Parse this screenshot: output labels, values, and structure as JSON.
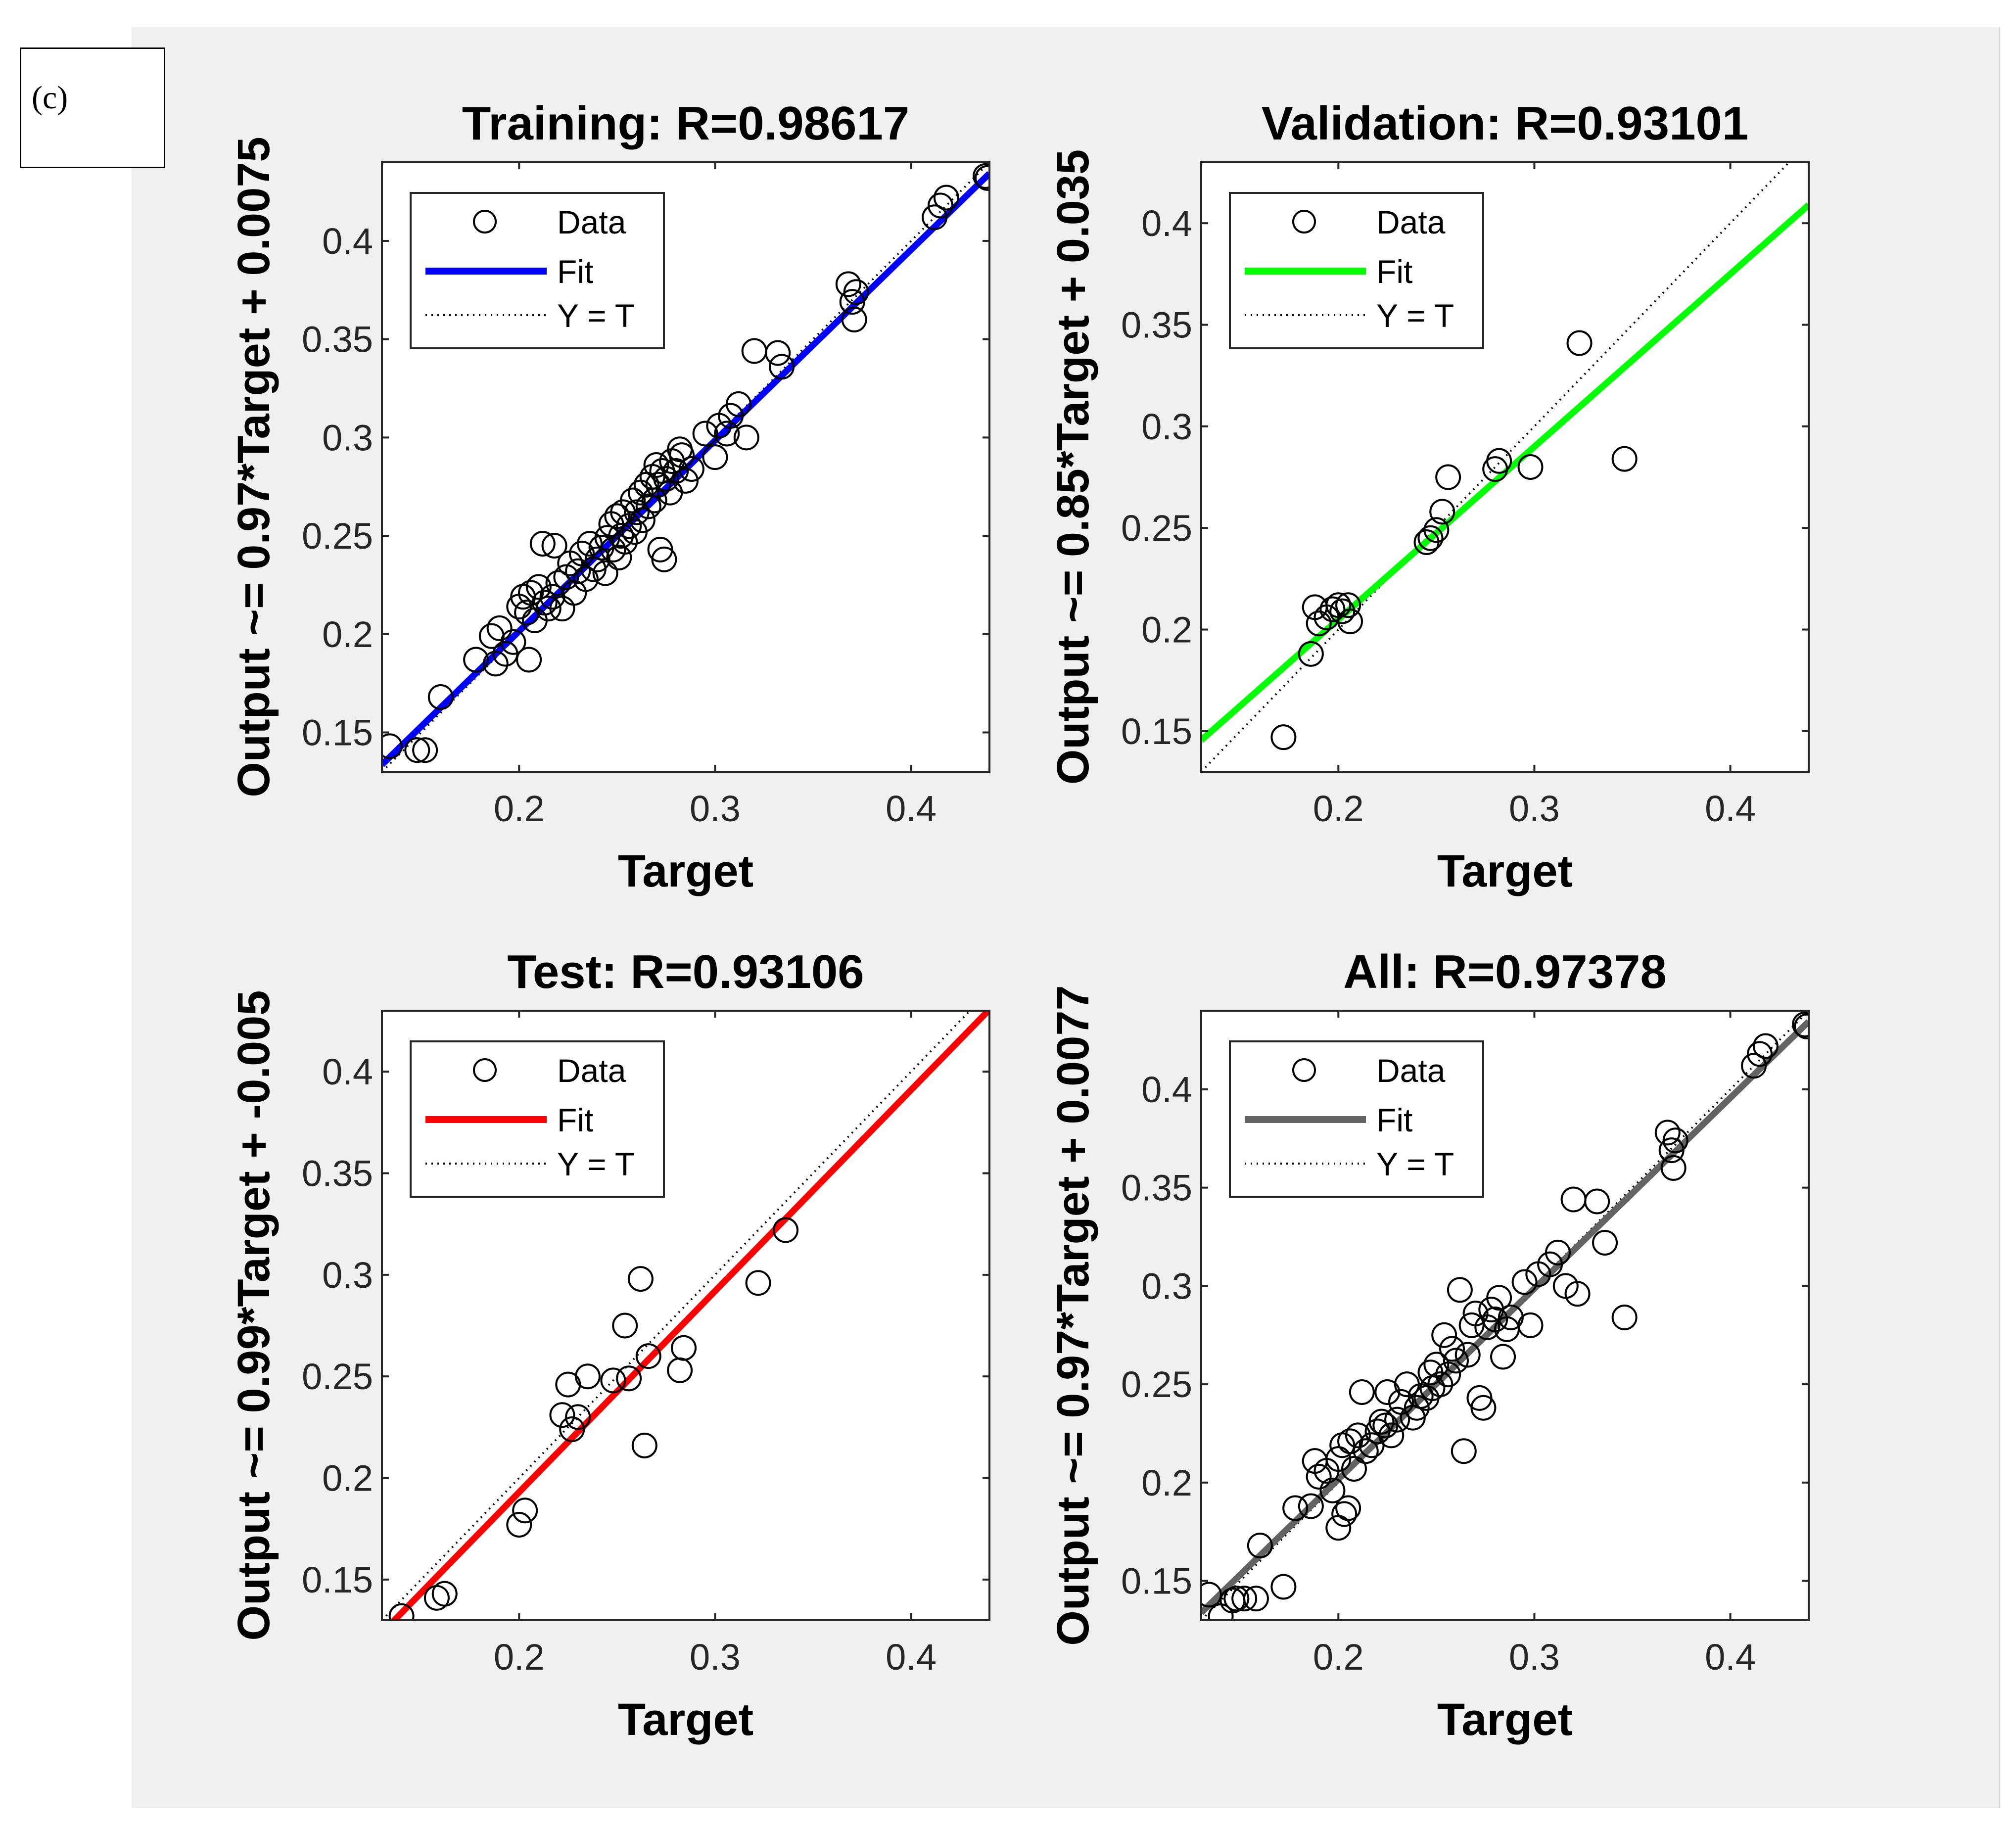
{
  "panel_label": "(c)",
  "colors": {
    "training": "#0000ff",
    "validation": "#00ff00",
    "test": "#ff0000",
    "all": "#636363"
  },
  "chart_data": [
    {
      "type": "scatter",
      "title": "Training: R=0.98617",
      "xlabel": "Target",
      "ylabel": "Output ~= 0.97*Target + 0.0075",
      "xlim": [
        0.13,
        0.44
      ],
      "ylim": [
        0.13,
        0.44
      ],
      "xticks": [
        0.2,
        0.3,
        0.4
      ],
      "yticks": [
        0.15,
        0.2,
        0.25,
        0.3,
        0.35,
        0.4
      ],
      "fit": {
        "slope": 0.97,
        "intercept": 0.0075
      },
      "fit_color": "#0000ff",
      "legend": [
        "Data",
        "Fit",
        "Y = T"
      ],
      "points": [
        [
          0.134,
          0.143
        ],
        [
          0.148,
          0.141
        ],
        [
          0.152,
          0.141
        ],
        [
          0.16,
          0.168
        ],
        [
          0.178,
          0.187
        ],
        [
          0.186,
          0.199
        ],
        [
          0.188,
          0.185
        ],
        [
          0.19,
          0.203
        ],
        [
          0.193,
          0.19
        ],
        [
          0.197,
          0.196
        ],
        [
          0.2,
          0.214
        ],
        [
          0.202,
          0.219
        ],
        [
          0.204,
          0.211
        ],
        [
          0.205,
          0.187
        ],
        [
          0.206,
          0.221
        ],
        [
          0.208,
          0.207
        ],
        [
          0.21,
          0.224
        ],
        [
          0.212,
          0.246
        ],
        [
          0.213,
          0.216
        ],
        [
          0.215,
          0.213
        ],
        [
          0.217,
          0.219
        ],
        [
          0.218,
          0.245
        ],
        [
          0.22,
          0.226
        ],
        [
          0.222,
          0.213
        ],
        [
          0.224,
          0.229
        ],
        [
          0.226,
          0.236
        ],
        [
          0.228,
          0.221
        ],
        [
          0.23,
          0.232
        ],
        [
          0.232,
          0.241
        ],
        [
          0.234,
          0.228
        ],
        [
          0.236,
          0.246
        ],
        [
          0.238,
          0.233
        ],
        [
          0.24,
          0.238
        ],
        [
          0.242,
          0.244
        ],
        [
          0.244,
          0.231
        ],
        [
          0.245,
          0.249
        ],
        [
          0.247,
          0.256
        ],
        [
          0.248,
          0.243
        ],
        [
          0.25,
          0.26
        ],
        [
          0.251,
          0.239
        ],
        [
          0.252,
          0.25
        ],
        [
          0.253,
          0.262
        ],
        [
          0.254,
          0.247
        ],
        [
          0.256,
          0.255
        ],
        [
          0.258,
          0.268
        ],
        [
          0.259,
          0.252
        ],
        [
          0.26,
          0.262
        ],
        [
          0.262,
          0.272
        ],
        [
          0.263,
          0.258
        ],
        [
          0.265,
          0.276
        ],
        [
          0.266,
          0.265
        ],
        [
          0.268,
          0.28
        ],
        [
          0.269,
          0.268
        ],
        [
          0.27,
          0.286
        ],
        [
          0.271,
          0.276
        ],
        [
          0.272,
          0.243
        ],
        [
          0.273,
          0.283
        ],
        [
          0.274,
          0.238
        ],
        [
          0.275,
          0.279
        ],
        [
          0.277,
          0.272
        ],
        [
          0.278,
          0.288
        ],
        [
          0.28,
          0.283
        ],
        [
          0.282,
          0.294
        ],
        [
          0.283,
          0.291
        ],
        [
          0.285,
          0.278
        ],
        [
          0.288,
          0.284
        ],
        [
          0.295,
          0.302
        ],
        [
          0.3,
          0.29
        ],
        [
          0.302,
          0.306
        ],
        [
          0.306,
          0.302
        ],
        [
          0.308,
          0.311
        ],
        [
          0.312,
          0.317
        ],
        [
          0.316,
          0.3
        ],
        [
          0.32,
          0.344
        ],
        [
          0.332,
          0.343
        ],
        [
          0.334,
          0.336
        ],
        [
          0.368,
          0.378
        ],
        [
          0.37,
          0.369
        ],
        [
          0.371,
          0.36
        ],
        [
          0.372,
          0.374
        ],
        [
          0.412,
          0.412
        ],
        [
          0.415,
          0.418
        ],
        [
          0.418,
          0.422
        ],
        [
          0.438,
          0.433
        ],
        [
          0.439,
          0.432
        ]
      ]
    },
    {
      "type": "scatter",
      "title": "Validation: R=0.93101",
      "xlabel": "Target",
      "ylabel": "Output ~= 0.85*Target + 0.035",
      "xlim": [
        0.13,
        0.44
      ],
      "ylim": [
        0.13,
        0.43
      ],
      "xticks": [
        0.2,
        0.3,
        0.4
      ],
      "yticks": [
        0.15,
        0.2,
        0.25,
        0.3,
        0.35,
        0.4
      ],
      "fit": {
        "slope": 0.85,
        "intercept": 0.035
      },
      "fit_color": "#00ff00",
      "legend": [
        "Data",
        "Fit",
        "Y = T"
      ],
      "points": [
        [
          0.172,
          0.147
        ],
        [
          0.186,
          0.188
        ],
        [
          0.188,
          0.211
        ],
        [
          0.19,
          0.203
        ],
        [
          0.194,
          0.206
        ],
        [
          0.197,
          0.21
        ],
        [
          0.2,
          0.212
        ],
        [
          0.202,
          0.209
        ],
        [
          0.205,
          0.212
        ],
        [
          0.206,
          0.204
        ],
        [
          0.245,
          0.243
        ],
        [
          0.247,
          0.245
        ],
        [
          0.25,
          0.249
        ],
        [
          0.253,
          0.258
        ],
        [
          0.256,
          0.275
        ],
        [
          0.28,
          0.279
        ],
        [
          0.282,
          0.283
        ],
        [
          0.298,
          0.28
        ],
        [
          0.323,
          0.341
        ],
        [
          0.346,
          0.284
        ]
      ]
    },
    {
      "type": "scatter",
      "title": "Test: R=0.93106",
      "xlabel": "Target",
      "ylabel": "Output ~= 0.99*Target + -0.005",
      "xlim": [
        0.13,
        0.44
      ],
      "ylim": [
        0.13,
        0.43
      ],
      "xticks": [
        0.2,
        0.3,
        0.4
      ],
      "yticks": [
        0.15,
        0.2,
        0.25,
        0.3,
        0.35,
        0.4
      ],
      "fit": {
        "slope": 0.99,
        "intercept": -0.005
      },
      "fit_color": "#ff0000",
      "legend": [
        "Data",
        "Fit",
        "Y = T"
      ],
      "points": [
        [
          0.14,
          0.132
        ],
        [
          0.158,
          0.141
        ],
        [
          0.162,
          0.143
        ],
        [
          0.2,
          0.177
        ],
        [
          0.203,
          0.184
        ],
        [
          0.222,
          0.231
        ],
        [
          0.225,
          0.246
        ],
        [
          0.227,
          0.224
        ],
        [
          0.23,
          0.23
        ],
        [
          0.235,
          0.25
        ],
        [
          0.248,
          0.248
        ],
        [
          0.254,
          0.275
        ],
        [
          0.256,
          0.249
        ],
        [
          0.262,
          0.298
        ],
        [
          0.264,
          0.216
        ],
        [
          0.266,
          0.26
        ],
        [
          0.282,
          0.253
        ],
        [
          0.284,
          0.264
        ],
        [
          0.322,
          0.296
        ],
        [
          0.336,
          0.322
        ]
      ]
    },
    {
      "type": "scatter",
      "title": "All: R=0.97378",
      "xlabel": "Target",
      "ylabel": "Output ~= 0.97*Target + 0.0077",
      "xlim": [
        0.13,
        0.44
      ],
      "ylim": [
        0.13,
        0.44
      ],
      "xticks": [
        0.2,
        0.3,
        0.4
      ],
      "yticks": [
        0.15,
        0.2,
        0.25,
        0.3,
        0.35,
        0.4
      ],
      "fit": {
        "slope": 0.97,
        "intercept": 0.0077
      },
      "fit_color": "#636363",
      "legend": [
        "Data",
        "Fit",
        "Y = T"
      ],
      "points": [
        [
          0.134,
          0.143
        ],
        [
          0.14,
          0.132
        ],
        [
          0.146,
          0.14
        ],
        [
          0.148,
          0.141
        ],
        [
          0.152,
          0.141
        ],
        [
          0.158,
          0.141
        ],
        [
          0.16,
          0.168
        ],
        [
          0.172,
          0.147
        ],
        [
          0.178,
          0.187
        ],
        [
          0.186,
          0.188
        ],
        [
          0.188,
          0.211
        ],
        [
          0.19,
          0.203
        ],
        [
          0.194,
          0.206
        ],
        [
          0.197,
          0.196
        ],
        [
          0.2,
          0.177
        ],
        [
          0.2,
          0.212
        ],
        [
          0.202,
          0.219
        ],
        [
          0.203,
          0.184
        ],
        [
          0.205,
          0.187
        ],
        [
          0.206,
          0.221
        ],
        [
          0.208,
          0.207
        ],
        [
          0.21,
          0.224
        ],
        [
          0.212,
          0.246
        ],
        [
          0.214,
          0.216
        ],
        [
          0.217,
          0.219
        ],
        [
          0.22,
          0.226
        ],
        [
          0.222,
          0.231
        ],
        [
          0.224,
          0.229
        ],
        [
          0.225,
          0.246
        ],
        [
          0.227,
          0.224
        ],
        [
          0.23,
          0.232
        ],
        [
          0.232,
          0.241
        ],
        [
          0.235,
          0.25
        ],
        [
          0.238,
          0.233
        ],
        [
          0.24,
          0.238
        ],
        [
          0.242,
          0.244
        ],
        [
          0.245,
          0.243
        ],
        [
          0.247,
          0.256
        ],
        [
          0.248,
          0.248
        ],
        [
          0.25,
          0.26
        ],
        [
          0.252,
          0.25
        ],
        [
          0.254,
          0.275
        ],
        [
          0.256,
          0.255
        ],
        [
          0.258,
          0.268
        ],
        [
          0.26,
          0.262
        ],
        [
          0.262,
          0.298
        ],
        [
          0.264,
          0.216
        ],
        [
          0.266,
          0.265
        ],
        [
          0.268,
          0.28
        ],
        [
          0.27,
          0.286
        ],
        [
          0.272,
          0.243
        ],
        [
          0.274,
          0.238
        ],
        [
          0.276,
          0.279
        ],
        [
          0.278,
          0.288
        ],
        [
          0.28,
          0.283
        ],
        [
          0.282,
          0.294
        ],
        [
          0.284,
          0.264
        ],
        [
          0.286,
          0.278
        ],
        [
          0.288,
          0.284
        ],
        [
          0.295,
          0.302
        ],
        [
          0.298,
          0.28
        ],
        [
          0.302,
          0.306
        ],
        [
          0.308,
          0.311
        ],
        [
          0.312,
          0.317
        ],
        [
          0.316,
          0.3
        ],
        [
          0.32,
          0.344
        ],
        [
          0.322,
          0.296
        ],
        [
          0.332,
          0.343
        ],
        [
          0.336,
          0.322
        ],
        [
          0.346,
          0.284
        ],
        [
          0.368,
          0.378
        ],
        [
          0.37,
          0.369
        ],
        [
          0.371,
          0.36
        ],
        [
          0.372,
          0.374
        ],
        [
          0.412,
          0.412
        ],
        [
          0.415,
          0.418
        ],
        [
          0.418,
          0.422
        ],
        [
          0.438,
          0.433
        ],
        [
          0.439,
          0.432
        ]
      ]
    }
  ]
}
